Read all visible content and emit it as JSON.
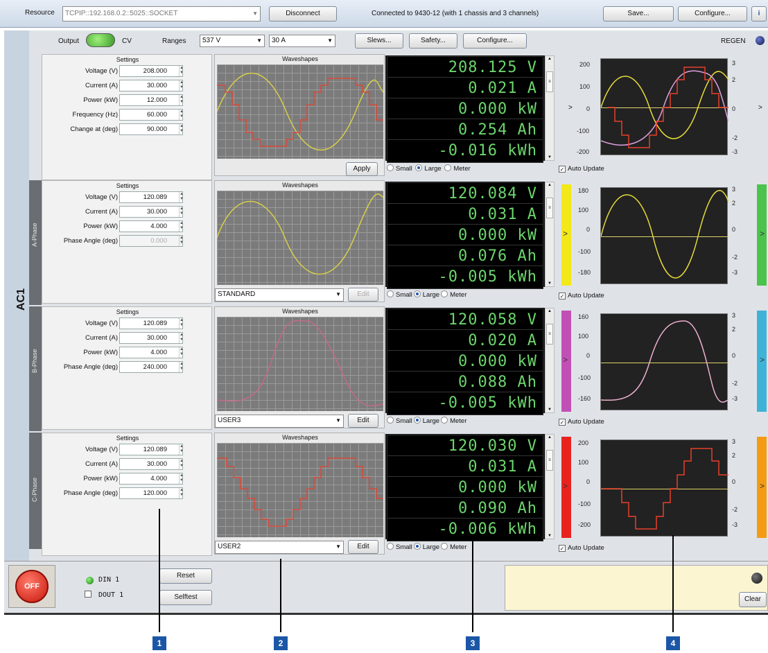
{
  "toolbar": {
    "resource_label": "Resource",
    "resource_value": "TCPIP::192.168.0.2::5025::SOCKET",
    "disconnect": "Disconnect",
    "status": "Connected to 9430-12 (with 1 chassis and 3 channels)",
    "save": "Save...",
    "configure": "Configure...",
    "info_icon": "i"
  },
  "controls": {
    "output_label": "Output",
    "mode": "CV",
    "ranges_label": "Ranges",
    "voltage_range": "537 V",
    "current_range": "30 A",
    "slews": "Slews...",
    "safety": "Safety...",
    "configure": "Configure...",
    "regen": "REGEN"
  },
  "channel": "AC1",
  "settings_title": "Settings",
  "waveshapes_title": "Waveshapes",
  "main": {
    "settings": [
      [
        "Voltage (V)",
        "208.000"
      ],
      [
        "Current (A)",
        "30.000"
      ],
      [
        "Power (kW)",
        "12.000"
      ],
      [
        "Frequency (Hz)",
        "60.000"
      ],
      [
        "Change at (deg)",
        "90.000"
      ]
    ],
    "apply": "Apply",
    "meters": [
      "208.125 V",
      "0.021 A",
      "0.000 kW",
      "0.254 Ah",
      "-0.016 kWh"
    ],
    "axis_left": [
      "200",
      "100",
      "0",
      "-100",
      "-200"
    ],
    "axis_right": [
      "3",
      "2",
      "0",
      "-2",
      "-3"
    ]
  },
  "phases": [
    {
      "name": "A-Phase",
      "settings": [
        [
          "Voltage (V)",
          "120.089"
        ],
        [
          "Current (A)",
          "30.000"
        ],
        [
          "Power (kW)",
          "4.000"
        ],
        [
          "Phase Angle (deg)",
          "0.000"
        ]
      ],
      "waveshape": "STANDARD",
      "edit": "Edit",
      "meters": [
        "120.084 V",
        "0.031 A",
        "0.000 kW",
        "0.076 Ah",
        "-0.005 kWh"
      ],
      "axis_left": [
        "180",
        "100",
        "0",
        "-100",
        "-180"
      ],
      "axis_right": [
        "3",
        "2",
        "0",
        "-2",
        "-3"
      ],
      "color": "#f2e81a",
      "color2": "#4cc34c"
    },
    {
      "name": "B-Phase",
      "settings": [
        [
          "Voltage (V)",
          "120.089"
        ],
        [
          "Current (A)",
          "30.000"
        ],
        [
          "Power (kW)",
          "4.000"
        ],
        [
          "Phase Angle (deg)",
          "240.000"
        ]
      ],
      "waveshape": "USER3",
      "edit": "Edit",
      "meters": [
        "120.058 V",
        "0.020 A",
        "0.000 kW",
        "0.088 Ah",
        "-0.005 kWh"
      ],
      "axis_left": [
        "160",
        "100",
        "0",
        "-100",
        "-160"
      ],
      "axis_right": [
        "3",
        "2",
        "0",
        "-2",
        "-3"
      ],
      "color": "#c24fb5",
      "color2": "#3fb3d6"
    },
    {
      "name": "C-Phase",
      "settings": [
        [
          "Voltage (V)",
          "120.089"
        ],
        [
          "Current (A)",
          "30.000"
        ],
        [
          "Power (kW)",
          "4.000"
        ],
        [
          "Phase Angle (deg)",
          "120.000"
        ]
      ],
      "waveshape": "USER2",
      "edit": "Edit",
      "meters": [
        "120.030 V",
        "0.031 A",
        "0.000 kW",
        "0.090 Ah",
        "-0.006 kWh"
      ],
      "axis_left": [
        "200",
        "100",
        "0",
        "-100",
        "-200"
      ],
      "axis_right": [
        "3",
        "2",
        "0",
        "-2",
        "-3"
      ],
      "color": "#e8231e",
      "color2": "#f49b16"
    }
  ],
  "options": {
    "small": "Small",
    "large": "Large",
    "meter": "Meter",
    "auto_update": "Auto Update"
  },
  "bottom": {
    "off": "OFF",
    "din": "DIN 1",
    "dout": "DOUT 1",
    "reset": "Reset",
    "selftest": "Selftest",
    "clear": "Clear"
  },
  "callouts": [
    "1",
    "2",
    "3",
    "4"
  ]
}
